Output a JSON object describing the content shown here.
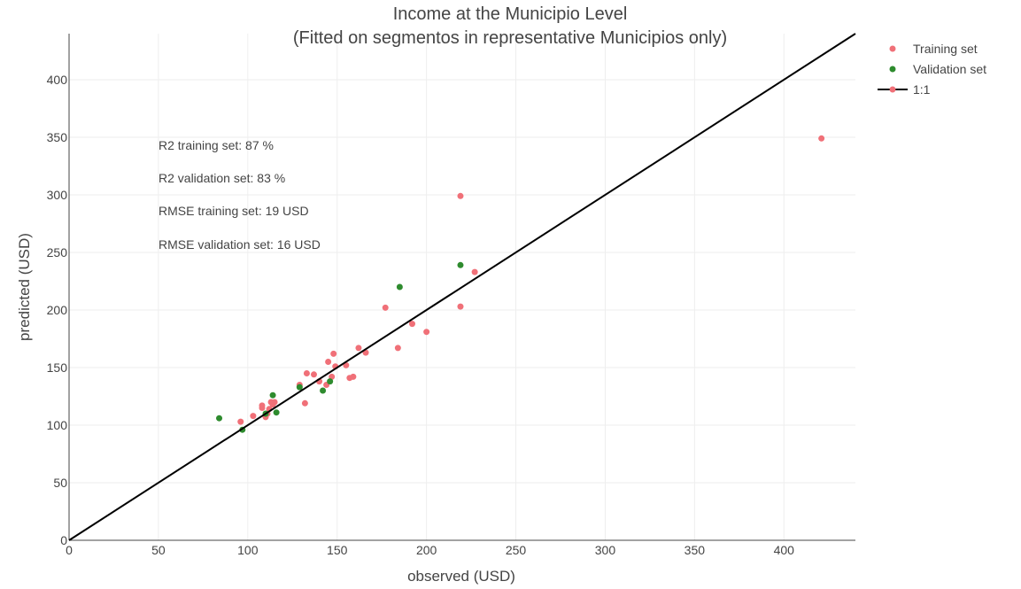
{
  "chart_data": {
    "type": "scatter",
    "title_lines": [
      "Income at the Municipio Level",
      "(Fitted on segmentos in representative Municipios only)"
    ],
    "xlabel": "observed (USD)",
    "ylabel": "predicted (USD)",
    "xlim": [
      0,
      440
    ],
    "ylim": [
      0,
      440
    ],
    "x_ticks": [
      0,
      50,
      100,
      150,
      200,
      250,
      300,
      350,
      400
    ],
    "y_ticks": [
      0,
      50,
      100,
      150,
      200,
      250,
      300,
      350,
      400
    ],
    "grid": true,
    "legend_position": "top-right",
    "annotations": [
      "R2 training set: 87 %",
      "R2 validation set: 83 %",
      "RMSE training set: 19 USD",
      "RMSE validation set: 16 USD"
    ],
    "series": [
      {
        "name": "Training set",
        "color": "#f07078",
        "points": [
          [
            96,
            103
          ],
          [
            103,
            108
          ],
          [
            108,
            115
          ],
          [
            108,
            117
          ],
          [
            110,
            107
          ],
          [
            111,
            110
          ],
          [
            112,
            114
          ],
          [
            113,
            120
          ],
          [
            114,
            118
          ],
          [
            115,
            120
          ],
          [
            129,
            135
          ],
          [
            132,
            119
          ],
          [
            133,
            145
          ],
          [
            137,
            144
          ],
          [
            140,
            138
          ],
          [
            144,
            135
          ],
          [
            145,
            155
          ],
          [
            147,
            142
          ],
          [
            148,
            162
          ],
          [
            149,
            151
          ],
          [
            155,
            152
          ],
          [
            157,
            141
          ],
          [
            159,
            142
          ],
          [
            162,
            167
          ],
          [
            166,
            163
          ],
          [
            177,
            202
          ],
          [
            184,
            167
          ],
          [
            192,
            188
          ],
          [
            200,
            181
          ],
          [
            219,
            299
          ],
          [
            219,
            203
          ],
          [
            227,
            233
          ],
          [
            421,
            349
          ]
        ]
      },
      {
        "name": "Validation set",
        "color": "#2e8b2e",
        "points": [
          [
            84,
            106
          ],
          [
            97,
            96
          ],
          [
            110,
            110
          ],
          [
            114,
            126
          ],
          [
            116,
            111
          ],
          [
            129,
            133
          ],
          [
            142,
            130
          ],
          [
            146,
            138
          ],
          [
            185,
            220
          ],
          [
            219,
            239
          ]
        ]
      },
      {
        "name": "1:1",
        "color": "#000000",
        "line": [
          [
            0,
            0
          ],
          [
            440,
            440
          ]
        ]
      }
    ]
  }
}
